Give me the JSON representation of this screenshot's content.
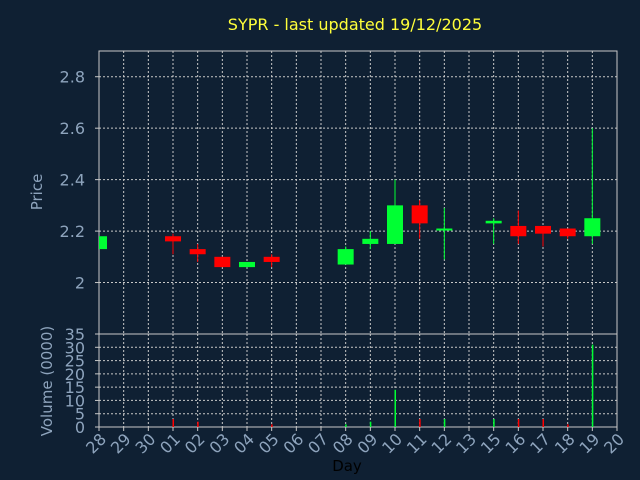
{
  "chart_data": {
    "title": "SYPR - last updated 19/12/2025",
    "price_panel": {
      "type": "candlestick",
      "ylabel": "Price",
      "ylim": [
        1.8,
        2.9
      ],
      "yticks": [
        "2",
        "2.2",
        "2.4",
        "2.6",
        "2.8"
      ],
      "ytick_values": [
        2.0,
        2.2,
        2.4,
        2.6,
        2.8
      ],
      "grid": true
    },
    "volume_panel": {
      "type": "bar",
      "ylabel": "Volume (0000)",
      "ylim": [
        0,
        35
      ],
      "yticks": [
        "0",
        "5",
        "10",
        "15",
        "20",
        "25",
        "30",
        "35"
      ],
      "ytick_values": [
        0,
        5,
        10,
        15,
        20,
        25,
        30,
        35
      ],
      "grid": true
    },
    "xlabel": "Day",
    "x_tick_labels": [
      "28",
      "29",
      "30",
      "01",
      "02",
      "03",
      "04",
      "05",
      "06",
      "07",
      "08",
      "09",
      "10",
      "11",
      "12",
      "13",
      "15",
      "16",
      "17",
      "18",
      "19",
      "20"
    ],
    "candles": [
      {
        "day": "28",
        "open": 2.13,
        "high": 2.18,
        "low": 2.13,
        "close": 2.18
      },
      {
        "day": "01",
        "open": 2.18,
        "high": 2.19,
        "low": 2.11,
        "close": 2.16
      },
      {
        "day": "02",
        "open": 2.13,
        "high": 2.15,
        "low": 2.08,
        "close": 2.11
      },
      {
        "day": "03",
        "open": 2.1,
        "high": 2.1,
        "low": 2.06,
        "close": 2.06
      },
      {
        "day": "04",
        "open": 2.06,
        "high": 2.08,
        "low": 2.06,
        "close": 2.08
      },
      {
        "day": "05",
        "open": 2.1,
        "high": 2.11,
        "low": 2.06,
        "close": 2.08
      },
      {
        "day": "08",
        "open": 2.07,
        "high": 2.14,
        "low": 2.07,
        "close": 2.13
      },
      {
        "day": "09",
        "open": 2.15,
        "high": 2.2,
        "low": 2.13,
        "close": 2.17
      },
      {
        "day": "10",
        "open": 2.15,
        "high": 2.4,
        "low": 2.15,
        "close": 2.3
      },
      {
        "day": "11",
        "open": 2.3,
        "high": 2.32,
        "low": 2.17,
        "close": 2.23
      },
      {
        "day": "12",
        "open": 2.21,
        "high": 2.29,
        "low": 2.09,
        "close": 2.21
      },
      {
        "day": "15",
        "open": 2.23,
        "high": 2.25,
        "low": 2.15,
        "close": 2.24
      },
      {
        "day": "16",
        "open": 2.22,
        "high": 2.28,
        "low": 2.15,
        "close": 2.18
      },
      {
        "day": "17",
        "open": 2.22,
        "high": 2.22,
        "low": 2.14,
        "close": 2.19
      },
      {
        "day": "18",
        "open": 2.21,
        "high": 2.21,
        "low": 2.17,
        "close": 2.18
      },
      {
        "day": "19",
        "open": 2.18,
        "high": 2.6,
        "low": 2.15,
        "close": 2.25
      }
    ],
    "volume": [
      {
        "day": "01",
        "value": 3
      },
      {
        "day": "02",
        "value": 2
      },
      {
        "day": "05",
        "value": 1
      },
      {
        "day": "08",
        "value": 1
      },
      {
        "day": "09",
        "value": 2
      },
      {
        "day": "10",
        "value": 14
      },
      {
        "day": "11",
        "value": 3
      },
      {
        "day": "12",
        "value": 3
      },
      {
        "day": "15",
        "value": 3
      },
      {
        "day": "16",
        "value": 3
      },
      {
        "day": "17",
        "value": 3
      },
      {
        "day": "18",
        "value": 1
      },
      {
        "day": "19",
        "value": 31
      }
    ],
    "colors": {
      "background": "#0f2033",
      "panel": "#0f2033",
      "up": "#00ff33",
      "down": "#ff0000",
      "grid": "#c8c8c8",
      "axis_text": "#8ea4bd",
      "title": "#ffff3a",
      "xlabel": "#000000"
    }
  }
}
